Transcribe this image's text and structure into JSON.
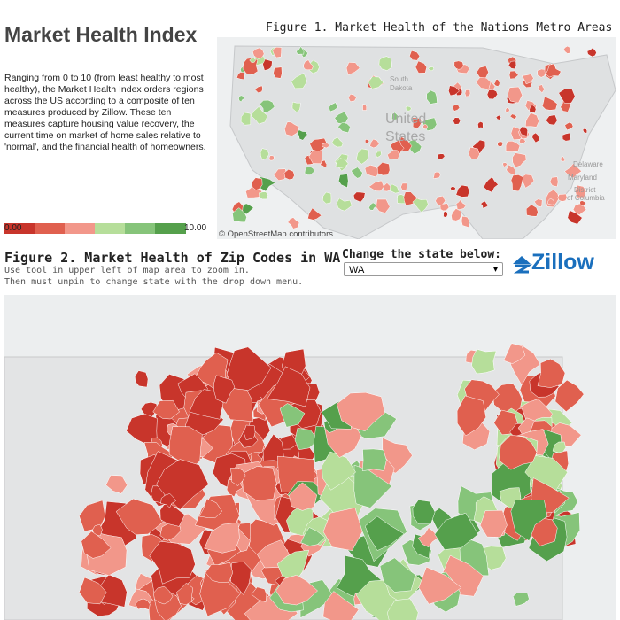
{
  "header": {
    "title": "Market Health Index",
    "description": "Ranging from 0 to 10 (from least healthy to most healthy), the Market Health Index orders regions across the US according to a composite of ten measures produced by Zillow. These ten measures capture housing value recovery, the current time on market of home sales relative to 'normal', and the financial health of homeowners."
  },
  "legend": {
    "min": "0.00",
    "max": "10.00"
  },
  "figure1": {
    "title": "Figure 1. Market Health of the Nations Metro Areas",
    "labels": [
      "United",
      "States",
      "South",
      "Dakota",
      "Delaware",
      "Maryland",
      "District",
      "of Columbia"
    ],
    "attribution": "© OpenStreetMap contributors"
  },
  "figure2": {
    "title": "Figure 2. Market Health of Zip Codes in WA",
    "instructions": [
      "Use tool in upper left of map area to zoom in.",
      "Then must unpin to change state with the drop down menu."
    ]
  },
  "state_selector": {
    "label": "Change the state below:",
    "value": "WA"
  },
  "brand": "Zillow"
}
